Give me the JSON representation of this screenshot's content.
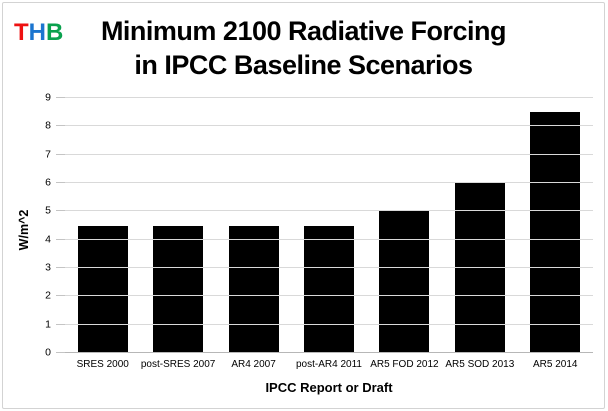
{
  "logo": {
    "letters": [
      {
        "char": "T",
        "color": "#ee1111"
      },
      {
        "char": "H",
        "color": "#1b75cf"
      },
      {
        "char": "B",
        "color": "#0aa14e"
      }
    ]
  },
  "title": {
    "line1": "Minimum 2100 Radiative Forcing",
    "line2": "in IPCC Baseline Scenarios"
  },
  "chart_data": {
    "type": "bar",
    "title": "Minimum 2100 Radiative Forcing in IPCC Baseline Scenarios",
    "categories": [
      "SRES 2000",
      "post-SRES 2007",
      "AR4 2007",
      "post-AR4 2011",
      "AR5 FOD 2012",
      "AR5 SOD 2013",
      "AR5 2014"
    ],
    "values": [
      4.5,
      4.5,
      4.5,
      4.5,
      5,
      6,
      8.5
    ],
    "xlabel": "IPCC Report or Draft",
    "ylabel": "W/m^2",
    "ylim": [
      0,
      9
    ],
    "yticks": [
      0,
      1,
      2,
      3,
      4,
      5,
      6,
      7,
      8,
      9
    ],
    "grid": "horizontal",
    "legend": "none",
    "bar_color": "#000000"
  },
  "colors": {
    "background": "#ffffff",
    "frame_border": "#d3d3d3",
    "gridline": "#d9d9d9",
    "axis_line": "#b7b7b7",
    "tick": "#c4c4c4",
    "bar": "#000000",
    "text": "#000000"
  }
}
